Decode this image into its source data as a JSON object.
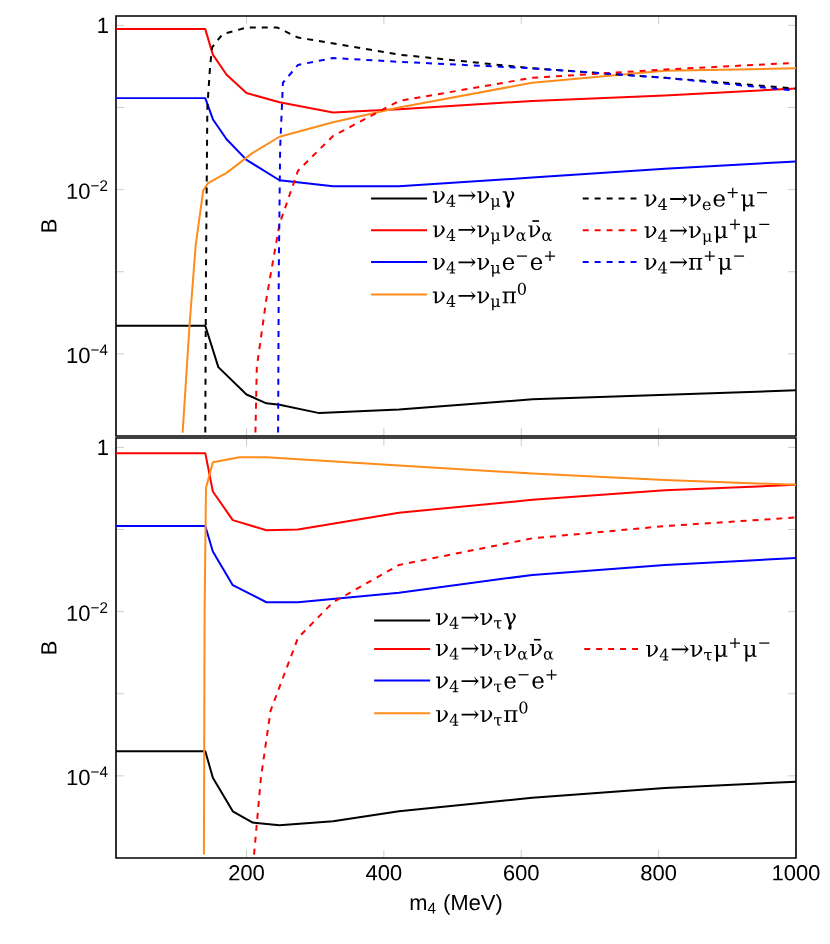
{
  "chart_data": [
    {
      "type": "line",
      "ylabel": "B",
      "xlim": [
        10,
        1000
      ],
      "ylim": [
        1e-05,
        1.3
      ],
      "xticks": [
        200,
        400,
        600,
        800,
        1000
      ],
      "yticks": [
        1,
        {
          "value": 0.1,
          "label": null
        },
        {
          "value": 0.01,
          "label": "10$^{−2}$"
        },
        {
          "value": 0.001,
          "label": null
        },
        {
          "value": 0.0001,
          "label": "10$^{−4}$"
        }
      ],
      "log": "y",
      "legend": "right",
      "tick_labels": "y",
      "series": [
        {
          "name": "ν$_{4}$→ν$_{μ}$γ",
          "color": "#000000",
          "line_style": "solid",
          "x": [
            10,
            140,
            159,
            200,
            229,
            248,
            306,
            422,
            616,
            1000
          ],
          "values": [
            0.00022,
            0.00022,
            6.9e-05,
            3.2e-05,
            2.5e-05,
            2.4e-05,
            1.9e-05,
            2.1e-05,
            2.8e-05,
            3.6e-05
          ]
        },
        {
          "name": "ν$_{4}$→ν$_{μ}$ν$_{α}$ν̄$_{α}$",
          "color": "#ff0000",
          "line_style": "solid",
          "x": [
            10,
            140,
            151,
            171,
            200,
            248,
            326,
            422,
            616,
            809,
            1000
          ],
          "values": [
            0.9,
            0.9,
            0.44,
            0.25,
            0.15,
            0.116,
            0.087,
            0.095,
            0.12,
            0.14,
            0.17
          ]
        },
        {
          "name": "ν$_{4}$→ν$_{μ}$e$^{−}$e$^{+}$",
          "color": "#0000ff",
          "line_style": "solid",
          "x": [
            10,
            140,
            151,
            171,
            200,
            248,
            326,
            422,
            616,
            809,
            1000
          ],
          "values": [
            0.13,
            0.13,
            0.072,
            0.041,
            0.023,
            0.013,
            0.011,
            0.011,
            0.014,
            0.018,
            0.022
          ]
        },
        {
          "name": "ν$_{4}$→ν$_{μ}$π$^{0}$",
          "color": "#ff8c1a",
          "line_style": "solid",
          "x": [
            107,
            117,
            126,
            137,
            144,
            171,
            209,
            248,
            326,
            422,
            616,
            809,
            1000
          ],
          "values": [
            1.1e-05,
            0.00022,
            0.0021,
            0.0098,
            0.012,
            0.016,
            0.028,
            0.044,
            0.066,
            0.1,
            0.2,
            0.28,
            0.3
          ]
        },
        {
          "name": "ν$_{4}$→ν$_{e}$e$^{+}$μ$^{−}$",
          "color": "#000000",
          "line_style": "dashed",
          "x": [
            140,
            141,
            143,
            147,
            150,
            165,
            200,
            245,
            275,
            422,
            616,
            809,
            1000
          ],
          "values": [
            1.1e-05,
            0.001,
            0.1,
            0.32,
            0.54,
            0.78,
            0.94,
            0.94,
            0.71,
            0.44,
            0.3,
            0.23,
            0.17
          ]
        },
        {
          "name": "ν$_{4}$→ν$_{μ}$μ$^{+}$μ$^{−}$",
          "color": "#ff0000",
          "line_style": "dashed",
          "x": [
            213,
            215,
            229,
            248,
            275,
            326,
            422,
            616,
            809,
            1000
          ],
          "values": [
            1.1e-05,
            6.9e-05,
            0.00047,
            0.0038,
            0.017,
            0.045,
            0.12,
            0.23,
            0.29,
            0.35
          ]
        },
        {
          "name": "ν$_{4}$→π$^{+}$μ$^{−}$",
          "color": "#0000ff",
          "line_style": "dashed",
          "x": [
            246,
            247,
            249,
            253,
            275,
            326,
            422,
            616,
            809,
            1000
          ],
          "values": [
            1.1e-05,
            0.001,
            0.032,
            0.2,
            0.33,
            0.4,
            0.36,
            0.3,
            0.23,
            0.16
          ]
        }
      ]
    },
    {
      "type": "line",
      "xlabel": "m$_{4}$ (MeV)",
      "ylabel": "B",
      "xlim": [
        10,
        1000
      ],
      "ylim": [
        1e-05,
        1.3
      ],
      "xticks": [
        200,
        400,
        600,
        800,
        1000
      ],
      "yticks": [
        1,
        {
          "value": 0.1,
          "label": null
        },
        {
          "value": 0.01,
          "label": "10$^{−2}$"
        },
        {
          "value": 0.001,
          "label": null
        },
        {
          "value": 0.0001,
          "label": "10$^{−4}$"
        }
      ],
      "log": "y",
      "legend": "right",
      "series": [
        {
          "name": "ν$_{4}$→ν$_{τ}$γ",
          "color": "#000000",
          "line_style": "solid",
          "x": [
            10,
            140,
            151,
            180,
            209,
            248,
            326,
            422,
            616,
            809,
            1000
          ],
          "values": [
            0.0002,
            0.0002,
            9.5e-05,
            3.7e-05,
            2.7e-05,
            2.5e-05,
            2.8e-05,
            3.7e-05,
            5.4e-05,
            7.1e-05,
            8.5e-05
          ]
        },
        {
          "name": "ν$_{4}$→ν$_{τ}$ν$_{α}$ν̄$_{α}$",
          "color": "#ff0000",
          "line_style": "solid",
          "x": [
            10,
            140,
            151,
            180,
            229,
            275,
            422,
            616,
            809,
            1000
          ],
          "values": [
            0.85,
            0.85,
            0.29,
            0.13,
            0.098,
            0.1,
            0.16,
            0.23,
            0.3,
            0.35
          ]
        },
        {
          "name": "ν$_{4}$→ν$_{τ}$e$^{−}$e$^{+}$",
          "color": "#0000ff",
          "line_style": "solid",
          "x": [
            10,
            140,
            151,
            180,
            229,
            275,
            422,
            616,
            809,
            1000
          ],
          "values": [
            0.11,
            0.11,
            0.054,
            0.021,
            0.013,
            0.013,
            0.017,
            0.028,
            0.037,
            0.045
          ]
        },
        {
          "name": "ν$_{4}$→ν$_{τ}$π$^{0}$",
          "color": "#ff8c1a",
          "line_style": "solid",
          "x": [
            138,
            139,
            141,
            151,
            190,
            229,
            422,
            616,
            809,
            1000
          ],
          "values": [
            1.1e-05,
            0.01,
            0.32,
            0.66,
            0.76,
            0.76,
            0.6,
            0.48,
            0.4,
            0.35
          ]
        },
        {
          "name": "ν$_{4}$→ν$_{τ}$μ$^{+}$μ$^{−}$",
          "color": "#ff0000",
          "line_style": "dashed",
          "x": [
            211,
            221,
            235,
            275,
            326,
            422,
            616,
            809,
            1000
          ],
          "values": [
            1.1e-05,
            9.5e-05,
            0.00062,
            0.0048,
            0.013,
            0.037,
            0.078,
            0.11,
            0.14
          ]
        }
      ]
    }
  ]
}
